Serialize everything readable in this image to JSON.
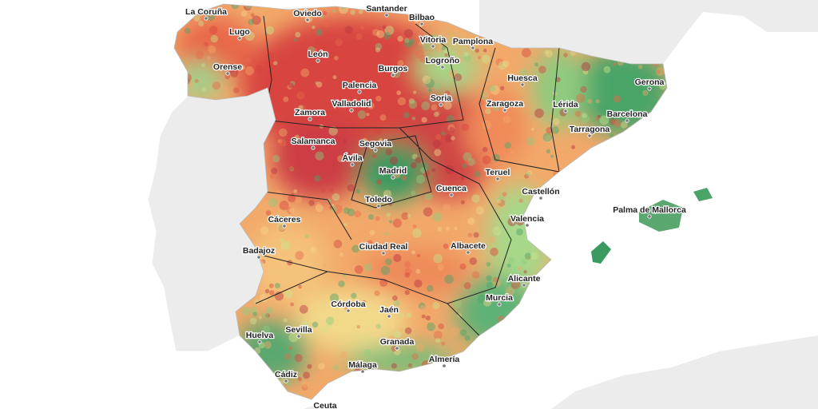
{
  "cities": [
    {
      "name": "La Coruña"
    },
    {
      "name": "Oviedo"
    },
    {
      "name": "Santander"
    },
    {
      "name": "Bilbao"
    },
    {
      "name": "Lugo"
    },
    {
      "name": "Vitoria"
    },
    {
      "name": "Pamplona"
    },
    {
      "name": "León"
    },
    {
      "name": "Logroño"
    },
    {
      "name": "Orense"
    },
    {
      "name": "Burgos"
    },
    {
      "name": "Huesca"
    },
    {
      "name": "Palencia"
    },
    {
      "name": "Gerona"
    },
    {
      "name": "Soria"
    },
    {
      "name": "Valladolid"
    },
    {
      "name": "Zaragoza"
    },
    {
      "name": "Lérida"
    },
    {
      "name": "Zamora"
    },
    {
      "name": "Barcelona"
    },
    {
      "name": "Tarragona"
    },
    {
      "name": "Segovia"
    },
    {
      "name": "Salamanca"
    },
    {
      "name": "Ávila"
    },
    {
      "name": "Madrid"
    },
    {
      "name": "Teruel"
    },
    {
      "name": "Toledo"
    },
    {
      "name": "Cuenca"
    },
    {
      "name": "Castellón"
    },
    {
      "name": "Palma de Mallorca"
    },
    {
      "name": "Cáceres"
    },
    {
      "name": "Valencia"
    },
    {
      "name": "Badajoz"
    },
    {
      "name": "Ciudad Real"
    },
    {
      "name": "Albacete"
    },
    {
      "name": "Alicante"
    },
    {
      "name": "Murcia"
    },
    {
      "name": "Córdoba"
    },
    {
      "name": "Jaén"
    },
    {
      "name": "Huelva"
    },
    {
      "name": "Sevilla"
    },
    {
      "name": "Granada"
    },
    {
      "name": "Almería"
    },
    {
      "name": "Málaga"
    },
    {
      "name": "Cádiz"
    },
    {
      "name": "Ceuta"
    }
  ]
}
